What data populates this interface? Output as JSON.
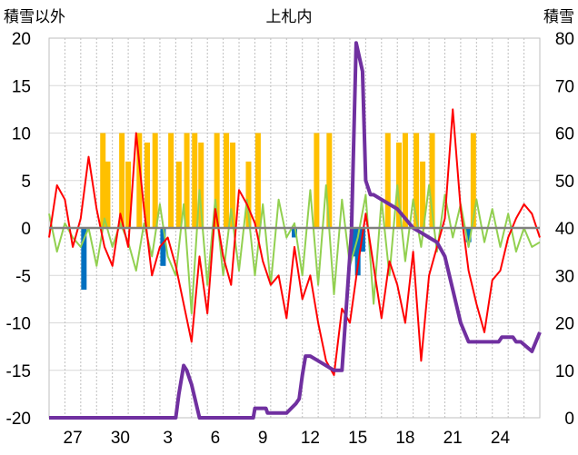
{
  "chart_data": {
    "type": "line",
    "title": "上札内",
    "left_axis_label": "積雪以外",
    "right_axis_label": "積雪",
    "left_ylim": [
      -20,
      20
    ],
    "right_ylim": [
      0,
      80
    ],
    "left_ticks": [
      "20",
      "15",
      "10",
      "5",
      "0",
      "-5",
      "-10",
      "-15",
      "-20"
    ],
    "right_ticks": [
      "80",
      "70",
      "60",
      "50",
      "40",
      "30",
      "20",
      "10",
      "0"
    ],
    "x_day_range": [
      0,
      31
    ],
    "x_ticks": [
      {
        "label": "27",
        "day": 1.5
      },
      {
        "label": "30",
        "day": 4.5
      },
      {
        "label": "3",
        "day": 7.5
      },
      {
        "label": "6",
        "day": 10.5
      },
      {
        "label": "9",
        "day": 13.5
      },
      {
        "label": "12",
        "day": 16.5
      },
      {
        "label": "15",
        "day": 19.5
      },
      {
        "label": "18",
        "day": 22.5
      },
      {
        "label": "21",
        "day": 25.5
      },
      {
        "label": "24",
        "day": 28.5
      }
    ],
    "grid": true,
    "series": [
      {
        "color": "#FFC000",
        "kind": "bar",
        "x": [
          3.4,
          3.7,
          4.6,
          5.0,
          5.7,
          6.2,
          6.7,
          7.7,
          8.2,
          8.7,
          9.2,
          9.6,
          10.6,
          11.2,
          11.6,
          12.6,
          13.2,
          16.9,
          17.7,
          21.4,
          22.1,
          22.5,
          23.2,
          23.6,
          24.2,
          26.8
        ],
        "y": [
          10,
          7,
          10,
          7,
          10,
          9,
          10,
          10,
          7,
          10,
          10,
          9,
          10,
          10,
          9,
          7,
          10,
          10,
          10,
          10,
          9,
          10,
          10,
          7,
          10,
          10
        ]
      },
      {
        "color": "#0070C0",
        "kind": "bar",
        "x": [
          2.2,
          7.2,
          15.5,
          19.2,
          19.5,
          19.8,
          26.5
        ],
        "y": [
          -6.5,
          -4,
          -1,
          -3,
          -5,
          -2.5,
          -1.5
        ]
      },
      {
        "color": "#92D050",
        "kind": "line",
        "x": [
          0.0,
          0.5,
          1.0,
          1.5,
          2.0,
          2.5,
          3.0,
          3.5,
          4.0,
          4.5,
          5.0,
          5.5,
          6.0,
          6.5,
          7.0,
          7.5,
          8.0,
          8.5,
          9.0,
          9.5,
          10.0,
          10.5,
          11.0,
          11.5,
          12.0,
          12.5,
          13.0,
          13.5,
          14.0,
          14.5,
          15.0,
          15.5,
          16.0,
          16.5,
          17.0,
          17.5,
          18.0,
          18.5,
          19.0,
          19.5,
          20.0,
          20.5,
          21.0,
          21.5,
          22.0,
          22.5,
          23.0,
          23.5,
          24.0,
          24.5,
          25.0,
          25.5,
          26.0,
          26.5,
          27.0,
          27.5,
          28.0,
          28.5,
          29.0,
          29.5,
          30.0,
          30.5,
          31.0
        ],
        "y": [
          1.5,
          -2.5,
          0.5,
          -1.0,
          -2.0,
          0.0,
          -4.0,
          1.0,
          -2.0,
          0.5,
          -1.5,
          -4.5,
          0.5,
          -3.0,
          2.5,
          -3.0,
          -5.0,
          2.5,
          -9.0,
          4.0,
          -6.0,
          3.0,
          -5.0,
          2.0,
          -4.5,
          3.0,
          -5.0,
          2.5,
          -6.0,
          3.0,
          -1.0,
          0.5,
          -5.0,
          4.0,
          -6.0,
          4.5,
          -7.0,
          3.0,
          -4.0,
          -1.0,
          3.5,
          -8.0,
          3.0,
          -5.0,
          4.5,
          -3.5,
          3.0,
          -2.0,
          4.5,
          -2.5,
          3.5,
          -1.0,
          2.5,
          -2.0,
          3.0,
          -1.5,
          2.0,
          -2.0,
          1.5,
          -2.5,
          0.0,
          -2.0,
          -1.5
        ]
      },
      {
        "color": "#FF0000",
        "kind": "line",
        "x": [
          0.0,
          0.5,
          1.0,
          1.5,
          2.0,
          2.5,
          3.0,
          3.5,
          4.0,
          4.5,
          5.0,
          5.5,
          6.0,
          6.5,
          7.0,
          7.5,
          8.0,
          8.5,
          9.0,
          9.5,
          10.0,
          10.5,
          11.0,
          11.5,
          12.0,
          12.5,
          13.0,
          13.5,
          14.0,
          14.5,
          15.0,
          15.5,
          16.0,
          16.5,
          17.0,
          17.5,
          18.0,
          18.5,
          19.0,
          19.5,
          20.0,
          20.5,
          21.0,
          21.5,
          22.0,
          22.5,
          23.0,
          23.5,
          24.0,
          24.5,
          25.0,
          25.5,
          26.0,
          26.5,
          27.0,
          27.5,
          28.0,
          28.5,
          29.0,
          29.5,
          30.0,
          30.5,
          31.0
        ],
        "y": [
          -1.0,
          4.5,
          3.0,
          -2.0,
          1.0,
          7.5,
          2.0,
          -2.0,
          -4.0,
          1.5,
          -2.0,
          10.0,
          2.0,
          -5.0,
          -2.0,
          -1.0,
          -4.0,
          -8.0,
          -12.0,
          -3.0,
          -9.0,
          2.0,
          -3.0,
          -6.0,
          4.0,
          2.5,
          0.5,
          -3.5,
          -6.0,
          -5.0,
          -9.5,
          -2.0,
          -7.5,
          -5.0,
          -10.0,
          -14.0,
          -15.5,
          -8.5,
          -10.0,
          -4.0,
          1.5,
          -4.0,
          -9.5,
          -3.5,
          -6.0,
          -10.0,
          -2.5,
          -14.0,
          -5.0,
          -2.0,
          1.0,
          12.5,
          2.0,
          -4.5,
          -8.0,
          -11.0,
          -5.5,
          -4.5,
          -1.0,
          1.0,
          2.5,
          1.5,
          -1.0
        ]
      },
      {
        "color": "#7030A0",
        "kind": "line",
        "axis": "right",
        "x": [
          0.0,
          8.0,
          8.2,
          8.5,
          8.7,
          8.9,
          9.0,
          9.5,
          12.9,
          13.0,
          13.7,
          13.8,
          14.5,
          15.0,
          15.3,
          15.6,
          15.8,
          16.0,
          16.2,
          16.5,
          17.0,
          17.5,
          18.0,
          18.5,
          19.1,
          19.4,
          19.8,
          20.0,
          20.3,
          20.5,
          21.0,
          22.0,
          22.5,
          23.0,
          23.5,
          24.0,
          24.5,
          25.0,
          25.5,
          26.0,
          26.5,
          27.0,
          28.0,
          28.4,
          28.6,
          29.0,
          29.3,
          29.5,
          29.8,
          30.5,
          31.0
        ],
        "y": [
          0,
          0,
          5,
          11,
          10,
          8,
          7,
          0,
          0,
          2,
          2,
          1,
          1,
          1,
          2,
          3,
          4,
          9,
          13,
          13,
          12,
          11,
          10,
          10,
          39,
          79,
          73,
          50,
          47,
          47,
          46,
          44,
          42,
          40,
          39,
          38,
          37,
          34,
          27,
          20,
          16,
          16,
          16,
          16,
          17,
          17,
          17,
          16,
          16,
          14,
          18
        ]
      }
    ]
  }
}
